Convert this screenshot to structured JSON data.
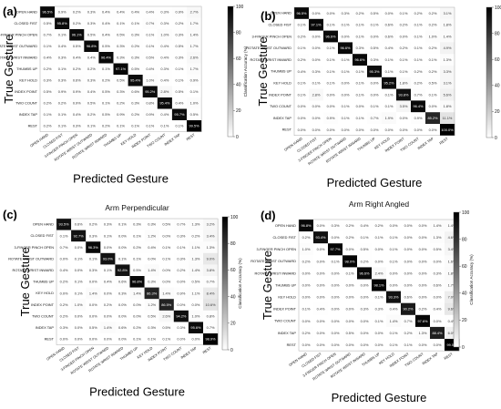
{
  "chart_data": [
    {
      "type": "heatmap",
      "panel_label": "(a)",
      "title": "",
      "xlabel": "Predicted Gesture",
      "ylabel": "True Gesture",
      "colorbar_label": "Classification Accuracy (%)",
      "colorbar_ticks": [
        0,
        20,
        40,
        60,
        80,
        100
      ],
      "labels": [
        "OPEN HAND",
        "CLOSED FIST",
        "3-FINGER PINCH OPEN",
        "ROTATE WRIST OUTWARD",
        "ROTATE WRIST INWARD",
        "THUMBS UP",
        "KEY HOLD",
        "INDEX POINT",
        "TWO COUNT",
        "INDEX TAP",
        "REST"
      ],
      "values": [
        [
          96.5,
          0.9,
          0.2,
          0.3,
          0.4,
          0.4,
          0.4,
          0.4,
          0.3,
          0.9,
          2.7
        ],
        [
          0.5,
          95.8,
          0.2,
          0.3,
          0.4,
          0.1,
          0.1,
          0.7,
          0.3,
          0.2,
          1.7
        ],
        [
          0.7,
          0.1,
          96.1,
          0.5,
          0.4,
          0.5,
          0.3,
          0.1,
          1.0,
          0.3,
          1.4
        ],
        [
          0.1,
          0.4,
          0.5,
          96.8,
          0.5,
          0.3,
          0.2,
          0.1,
          0.4,
          0.5,
          1.7
        ],
        [
          0.4,
          0.3,
          0.4,
          0.4,
          96.4,
          0.3,
          0.3,
          0.5,
          0.4,
          0.3,
          2.6
        ],
        [
          0.2,
          0.1,
          0.2,
          0.2,
          0.1,
          97.1,
          0.5,
          0.4,
          0.3,
          0.1,
          1.7
        ],
        [
          0.3,
          0.3,
          0.6,
          0.3,
          0.2,
          0.5,
          95.4,
          1.0,
          0.4,
          0.1,
          0.9
        ],
        [
          0.5,
          0.9,
          0.9,
          0.4,
          0.5,
          0.3,
          0.6,
          95.2,
          2.8,
          0.5,
          0.1
        ],
        [
          0.2,
          0.2,
          0.9,
          0.5,
          0.1,
          0.2,
          0.3,
          0.8,
          95.4,
          0.4,
          1.0
        ],
        [
          0.1,
          0.1,
          0.4,
          0.2,
          0.5,
          0.9,
          0.2,
          0.9,
          0.4,
          95.7,
          0.5
        ],
        [
          0.2,
          0.1,
          0.3,
          0.1,
          0.2,
          0.1,
          0.1,
          0.1,
          0.1,
          0.1,
          99.5
        ]
      ]
    },
    {
      "type": "heatmap",
      "panel_label": "(b)",
      "title": "",
      "xlabel": "Predicted Gesture",
      "ylabel": "True Gesture",
      "colorbar_label": "Classification Accuracy (%)",
      "colorbar_ticks": [
        0,
        20,
        40,
        60,
        80,
        100
      ],
      "labels": [
        "OPEN HAND",
        "CLOSED FIST",
        "3-FINGER PINCH OPEN",
        "ROTATE WRIST OUTWARD",
        "ROTATE WRIST INWARD",
        "THUMBS UP",
        "KEY HOLD",
        "INDEX POINT",
        "TWO COUNT",
        "INDEX TAP",
        "REST"
      ],
      "values": [
        [
          96.5,
          0.0,
          0.0,
          0.3,
          0.2,
          0.5,
          0.0,
          0.1,
          0.2,
          0.2,
          3.1
        ],
        [
          0.1,
          97.1,
          0.1,
          0.1,
          0.1,
          0.1,
          0.6,
          0.2,
          0.1,
          0.2,
          1.8
        ],
        [
          0.2,
          0.0,
          96.6,
          0.0,
          0.1,
          0.0,
          0.6,
          0.0,
          0.1,
          1.0,
          1.4
        ],
        [
          0.1,
          0.0,
          0.1,
          96.6,
          0.3,
          0.5,
          0.4,
          0.2,
          0.1,
          0.2,
          4.9
        ],
        [
          0.2,
          0.0,
          0.1,
          0.1,
          96.6,
          0.3,
          0.1,
          0.1,
          0.1,
          0.1,
          1.3
        ],
        [
          0.4,
          0.3,
          0.1,
          0.1,
          0.1,
          95.3,
          0.1,
          0.1,
          0.2,
          0.2,
          3.3
        ],
        [
          0.1,
          0.1,
          0.1,
          0.0,
          0.1,
          0.0,
          95.2,
          1.8,
          0.2,
          0.5,
          3.1
        ],
        [
          0.1,
          2.8,
          0.0,
          0.0,
          0.1,
          0.0,
          0.1,
          93.8,
          0.7,
          0.1,
          5.6
        ],
        [
          0.0,
          0.0,
          0.0,
          0.1,
          0.0,
          0.1,
          0.1,
          3.5,
          96.4,
          0.0,
          1.8
        ],
        [
          0.0,
          0.0,
          0.9,
          0.1,
          0.1,
          0.7,
          1.9,
          0.0,
          0.9,
          85.2,
          11.1
        ],
        [
          0.0,
          0.0,
          0.0,
          0.0,
          0.0,
          0.0,
          0.0,
          0.0,
          0.0,
          0.0,
          100.0
        ]
      ]
    },
    {
      "type": "heatmap",
      "panel_label": "(c)",
      "title": "Arm Perpendicular",
      "xlabel": "Predicted Gesture",
      "ylabel": "True Gesture",
      "colorbar_label": "Classification Accuracy (%)",
      "colorbar_ticks": [
        0,
        20,
        40,
        60,
        80,
        100
      ],
      "labels": [
        "OPEN HAND",
        "CLOSED FIST",
        "3-FINGER PINCH OPEN",
        "ROTATE WRIST OUTWARD",
        "ROTATE WRIST INWARD",
        "THUMBS UP",
        "KEY HOLD",
        "INDEX POINT",
        "TWO COUNT",
        "INDEX TAP",
        "REST"
      ],
      "values": [
        [
          93.5,
          0.6,
          0.2,
          0.3,
          0.1,
          0.3,
          0.3,
          0.5,
          0.7,
          1.3,
          3.2
        ],
        [
          0.1,
          92.7,
          0.3,
          0.1,
          0.0,
          0.1,
          1.2,
          0.0,
          0.3,
          0.2,
          3.4
        ],
        [
          0.7,
          0.0,
          96.3,
          0.0,
          0.0,
          0.2,
          0.4,
          0.1,
          0.1,
          1.1,
          1.3
        ],
        [
          0.0,
          0.1,
          0.1,
          93.0,
          0.1,
          0.1,
          0.0,
          0.1,
          0.3,
          1.3,
          9.0
        ],
        [
          0.4,
          0.0,
          0.3,
          0.1,
          92.8,
          0.5,
          1.4,
          0.0,
          0.2,
          1.4,
          3.8
        ],
        [
          0.2,
          0.1,
          0.0,
          0.4,
          0.6,
          96.8,
          0.3,
          0.0,
          0.0,
          0.5,
          0.7
        ],
        [
          0.0,
          0.1,
          1.4,
          0.0,
          0.3,
          1.4,
          86.3,
          1.4,
          0.9,
          1.1,
          8.4
        ],
        [
          0.2,
          1.0,
          0.0,
          0.2,
          0.0,
          0.0,
          1.2,
          86.5,
          0.0,
          0.0,
          10.6
        ],
        [
          0.2,
          0.0,
          0.0,
          0.0,
          0.0,
          0.0,
          0.5,
          2.6,
          94.2,
          1.0,
          0.8
        ],
        [
          0.3,
          0.0,
          0.5,
          1.4,
          0.6,
          0.2,
          0.3,
          0.5,
          0.3,
          95.6,
          0.7
        ],
        [
          0.0,
          0.0,
          0.0,
          0.0,
          0.0,
          0.1,
          0.1,
          0.1,
          0.0,
          0.0,
          98.9
        ]
      ]
    },
    {
      "type": "heatmap",
      "panel_label": "(d)",
      "title": "Arm Right Angled",
      "xlabel": "Predicted Gesture",
      "ylabel": "True Gesture",
      "colorbar_label": "Classification Accuracy (%)",
      "colorbar_ticks": [
        0,
        20,
        40,
        60,
        80,
        100
      ],
      "labels": [
        "OPEN HAND",
        "CLOSED FIST",
        "3-FINGER PINCH OPEN",
        "ROTATE WRIST OUTWARD",
        "ROTATE WRIST INWARD",
        "THUMBS UP",
        "KEY HOLD",
        "INDEX POINT",
        "TWO COUNT",
        "INDEX TAP",
        "REST"
      ],
      "values": [
        [
          96.8,
          0.0,
          0.3,
          0.2,
          0.4,
          0.2,
          0.0,
          0.0,
          0.0,
          1.4,
          1.4
        ],
        [
          0.2,
          93.4,
          0.0,
          0.2,
          0.1,
          0.1,
          0.1,
          0.0,
          0.0,
          1.3,
          4.6
        ],
        [
          1.0,
          0.0,
          97.7,
          0.0,
          0.5,
          0.0,
          0.1,
          0.0,
          0.0,
          0.5,
          3.4
        ],
        [
          0.2,
          0.0,
          0.1,
          98.0,
          0.2,
          0.0,
          0.1,
          0.0,
          0.0,
          0.0,
          1.6
        ],
        [
          0.0,
          0.0,
          0.0,
          0.1,
          96.6,
          2.4,
          0.0,
          0.0,
          0.0,
          0.3,
          1.8
        ],
        [
          0.0,
          0.0,
          0.0,
          0.0,
          0.0,
          98.1,
          0.0,
          0.0,
          0.0,
          0.6,
          1.7
        ],
        [
          0.0,
          0.0,
          0.0,
          0.0,
          0.0,
          0.1,
          93.3,
          0.6,
          0.0,
          0.0,
          7.0
        ],
        [
          0.1,
          0.4,
          0.0,
          0.0,
          0.3,
          0.3,
          0.4,
          90.2,
          0.2,
          0.4,
          9.6
        ],
        [
          0.0,
          0.0,
          0.0,
          0.0,
          0.0,
          0.1,
          1.4,
          0.7,
          97.6,
          0.0,
          0.4
        ],
        [
          0.2,
          0.0,
          0.0,
          0.5,
          0.0,
          0.0,
          0.1,
          0.2,
          1.3,
          88.4,
          6.0
        ],
        [
          0.0,
          0.0,
          0.0,
          0.0,
          0.0,
          0.0,
          0.1,
          0.1,
          0.0,
          0.0,
          99.5
        ]
      ]
    }
  ]
}
